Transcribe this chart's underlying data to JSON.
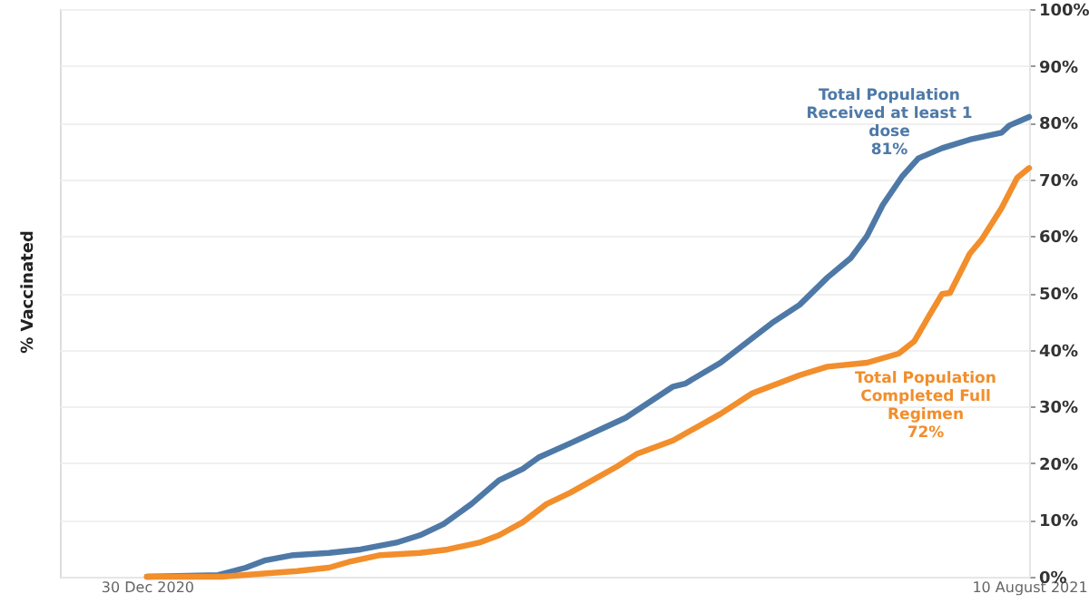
{
  "chart_data": {
    "type": "line",
    "ylabel": "% Vaccinated",
    "xlim": [
      "2020-12-08",
      "2021-08-10"
    ],
    "xticks": [
      {
        "value": "2020-12-30",
        "label": "30 Dec 2020"
      },
      {
        "value": "2021-08-10",
        "label": "10 August 2021"
      }
    ],
    "ylim": [
      0,
      100
    ],
    "yticks": [
      {
        "value": 0,
        "label": "0%"
      },
      {
        "value": 10,
        "label": "10%"
      },
      {
        "value": 20,
        "label": "20%"
      },
      {
        "value": 30,
        "label": "30%"
      },
      {
        "value": 40,
        "label": "40%"
      },
      {
        "value": 50,
        "label": "50%"
      },
      {
        "value": 60,
        "label": "60%"
      },
      {
        "value": 70,
        "label": "70%"
      },
      {
        "value": 80,
        "label": "80%"
      },
      {
        "value": 90,
        "label": "90%"
      },
      {
        "value": 100,
        "label": "100%"
      }
    ],
    "grid": "y",
    "line_style": "solid",
    "marker": "none",
    "series": [
      {
        "color": "#4e79a7",
        "x": [
          "2020-12-30",
          "2021-01-17",
          "2021-01-24",
          "2021-01-29",
          "2021-02-05",
          "2021-02-14",
          "2021-02-22",
          "2021-03-03",
          "2021-03-09",
          "2021-03-15",
          "2021-03-22",
          "2021-03-29",
          "2021-04-04",
          "2021-04-08",
          "2021-04-16",
          "2021-04-30",
          "2021-05-12",
          "2021-05-15",
          "2021-05-24",
          "2021-06-01",
          "2021-06-06",
          "2021-06-13",
          "2021-06-20",
          "2021-06-26",
          "2021-06-30",
          "2021-07-04",
          "2021-07-09",
          "2021-07-13",
          "2021-07-19",
          "2021-07-26",
          "2021-08-03",
          "2021-08-05",
          "2021-08-10"
        ],
        "values": [
          0,
          0.3,
          1.6,
          2.9,
          3.8,
          4.2,
          4.8,
          6,
          7.3,
          9.3,
          12.8,
          17,
          19,
          21,
          23.5,
          28,
          33.5,
          34,
          37.7,
          42,
          44.7,
          47.9,
          52.7,
          56.2,
          60,
          65.5,
          70.6,
          73.7,
          75.5,
          77,
          78.2,
          79.5,
          81
        ]
      },
      {
        "color": "#f28e2b",
        "x": [
          "2020-12-30",
          "2021-01-18",
          "2021-02-06",
          "2021-02-14",
          "2021-02-19",
          "2021-02-27",
          "2021-03-09",
          "2021-03-16",
          "2021-03-24",
          "2021-03-29",
          "2021-04-04",
          "2021-04-10",
          "2021-04-16",
          "2021-04-28",
          "2021-05-03",
          "2021-05-12",
          "2021-05-24",
          "2021-06-01",
          "2021-06-13",
          "2021-06-20",
          "2021-06-30",
          "2021-07-08",
          "2021-07-12",
          "2021-07-16",
          "2021-07-19",
          "2021-07-21",
          "2021-07-26",
          "2021-07-29",
          "2021-08-03",
          "2021-08-07",
          "2021-08-10"
        ],
        "values": [
          0,
          0,
          1,
          1.6,
          2.6,
          3.8,
          4.2,
          4.8,
          6,
          7.3,
          9.6,
          12.8,
          14.8,
          19.5,
          21.7,
          24,
          28.7,
          32.3,
          35.5,
          37,
          37.7,
          39.3,
          41.5,
          46.3,
          49.8,
          50,
          56.9,
          59.4,
          64.9,
          70.3,
          72
        ]
      }
    ],
    "annotations": [
      "Total Population Received at least 1 dose 81%",
      "Total Population Completed Full Regimen 72%"
    ]
  }
}
